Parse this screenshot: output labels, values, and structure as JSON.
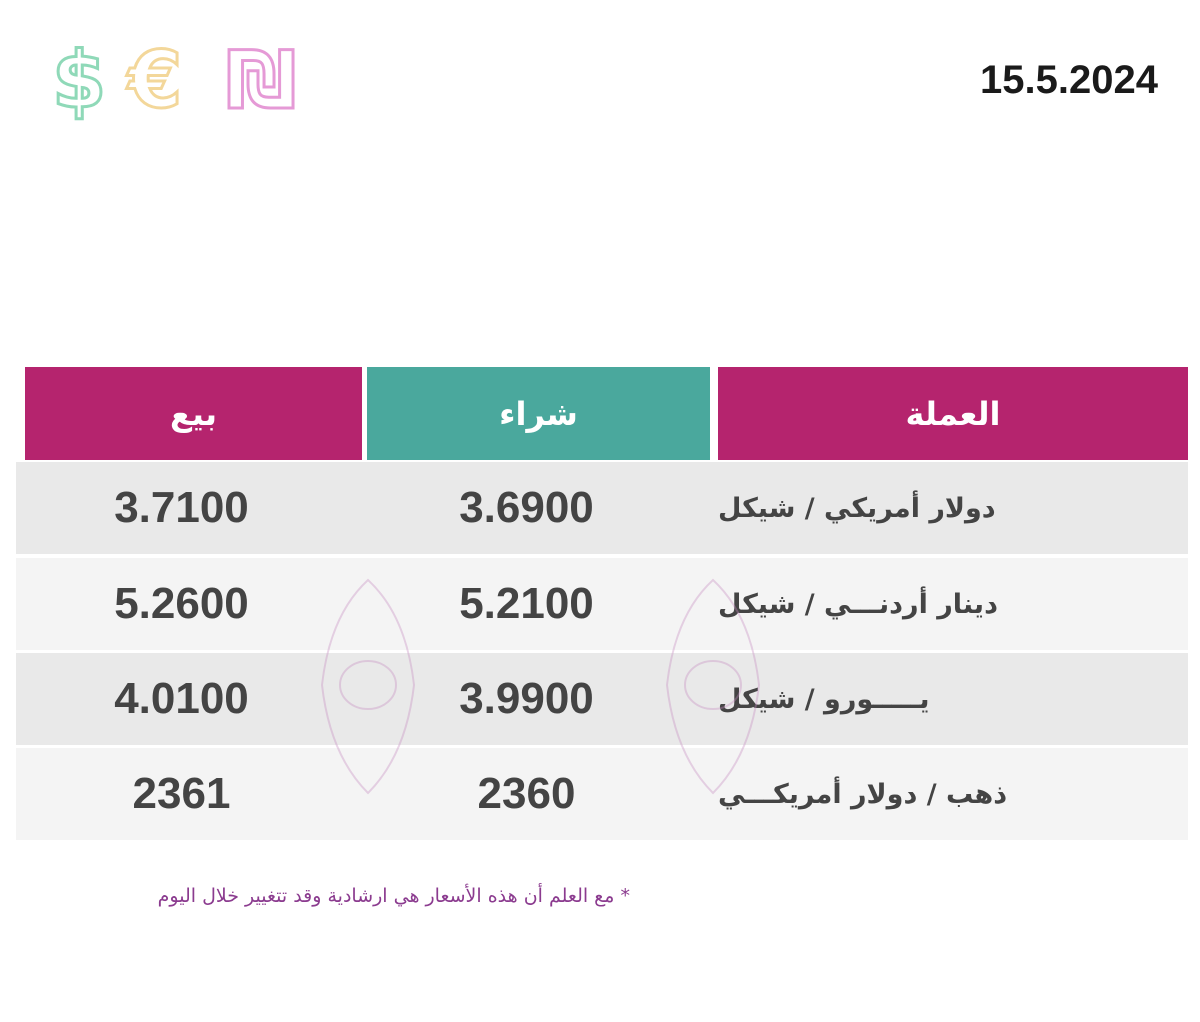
{
  "header": {
    "icons": [
      "$",
      "€",
      "₪"
    ],
    "date": "15.5.2024"
  },
  "table": {
    "headers": [
      "العملة",
      "شراء",
      "بيع"
    ],
    "rows": [
      [
        "دولار أمريكي / شيكل",
        "3.6900",
        "3.7100"
      ],
      [
        "دينار أردنـــي / شيكل",
        "5.2100",
        "5.2600"
      ],
      [
        "يـــــورو / شيكل",
        "3.9900",
        "4.0100"
      ],
      [
        "ذهب / دولار أمريكـــي",
        "2360",
        "2361"
      ]
    ]
  },
  "footnote": "* مع العلم أن هذه الأسعار هي ارشادية وقد تتغيير خلال اليوم"
}
